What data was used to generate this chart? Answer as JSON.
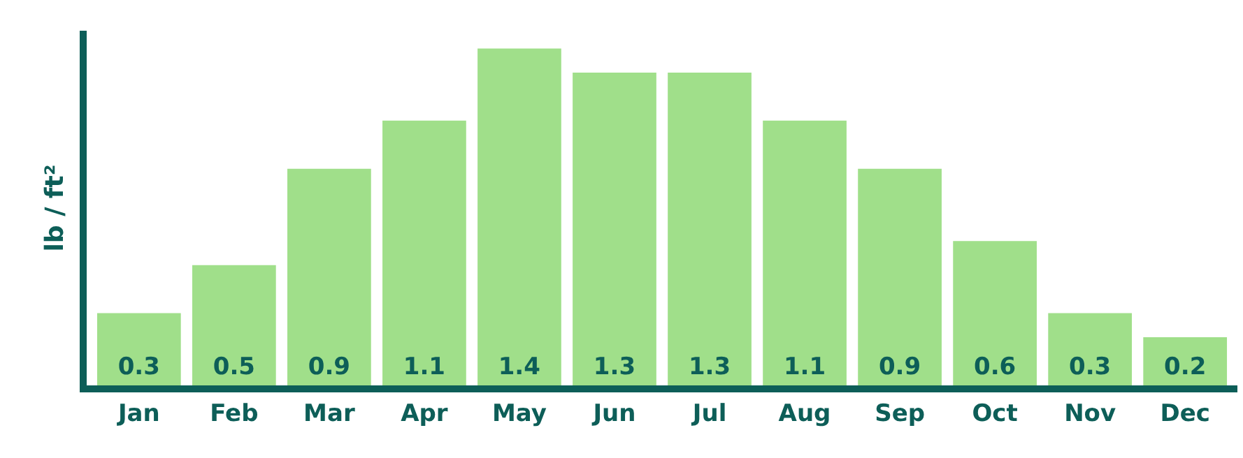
{
  "chart_data": {
    "type": "bar",
    "ylabel": "lb / ft²",
    "categories": [
      "Jan",
      "Feb",
      "Mar",
      "Apr",
      "May",
      "Jun",
      "Jul",
      "Aug",
      "Sep",
      "Oct",
      "Nov",
      "Dec"
    ],
    "values": [
      0.3,
      0.5,
      0.9,
      1.1,
      1.4,
      1.3,
      1.3,
      1.1,
      0.9,
      0.6,
      0.3,
      0.2
    ],
    "color": "#a0df8a",
    "data_labels": true,
    "legend": false,
    "tick_labels": "x"
  }
}
